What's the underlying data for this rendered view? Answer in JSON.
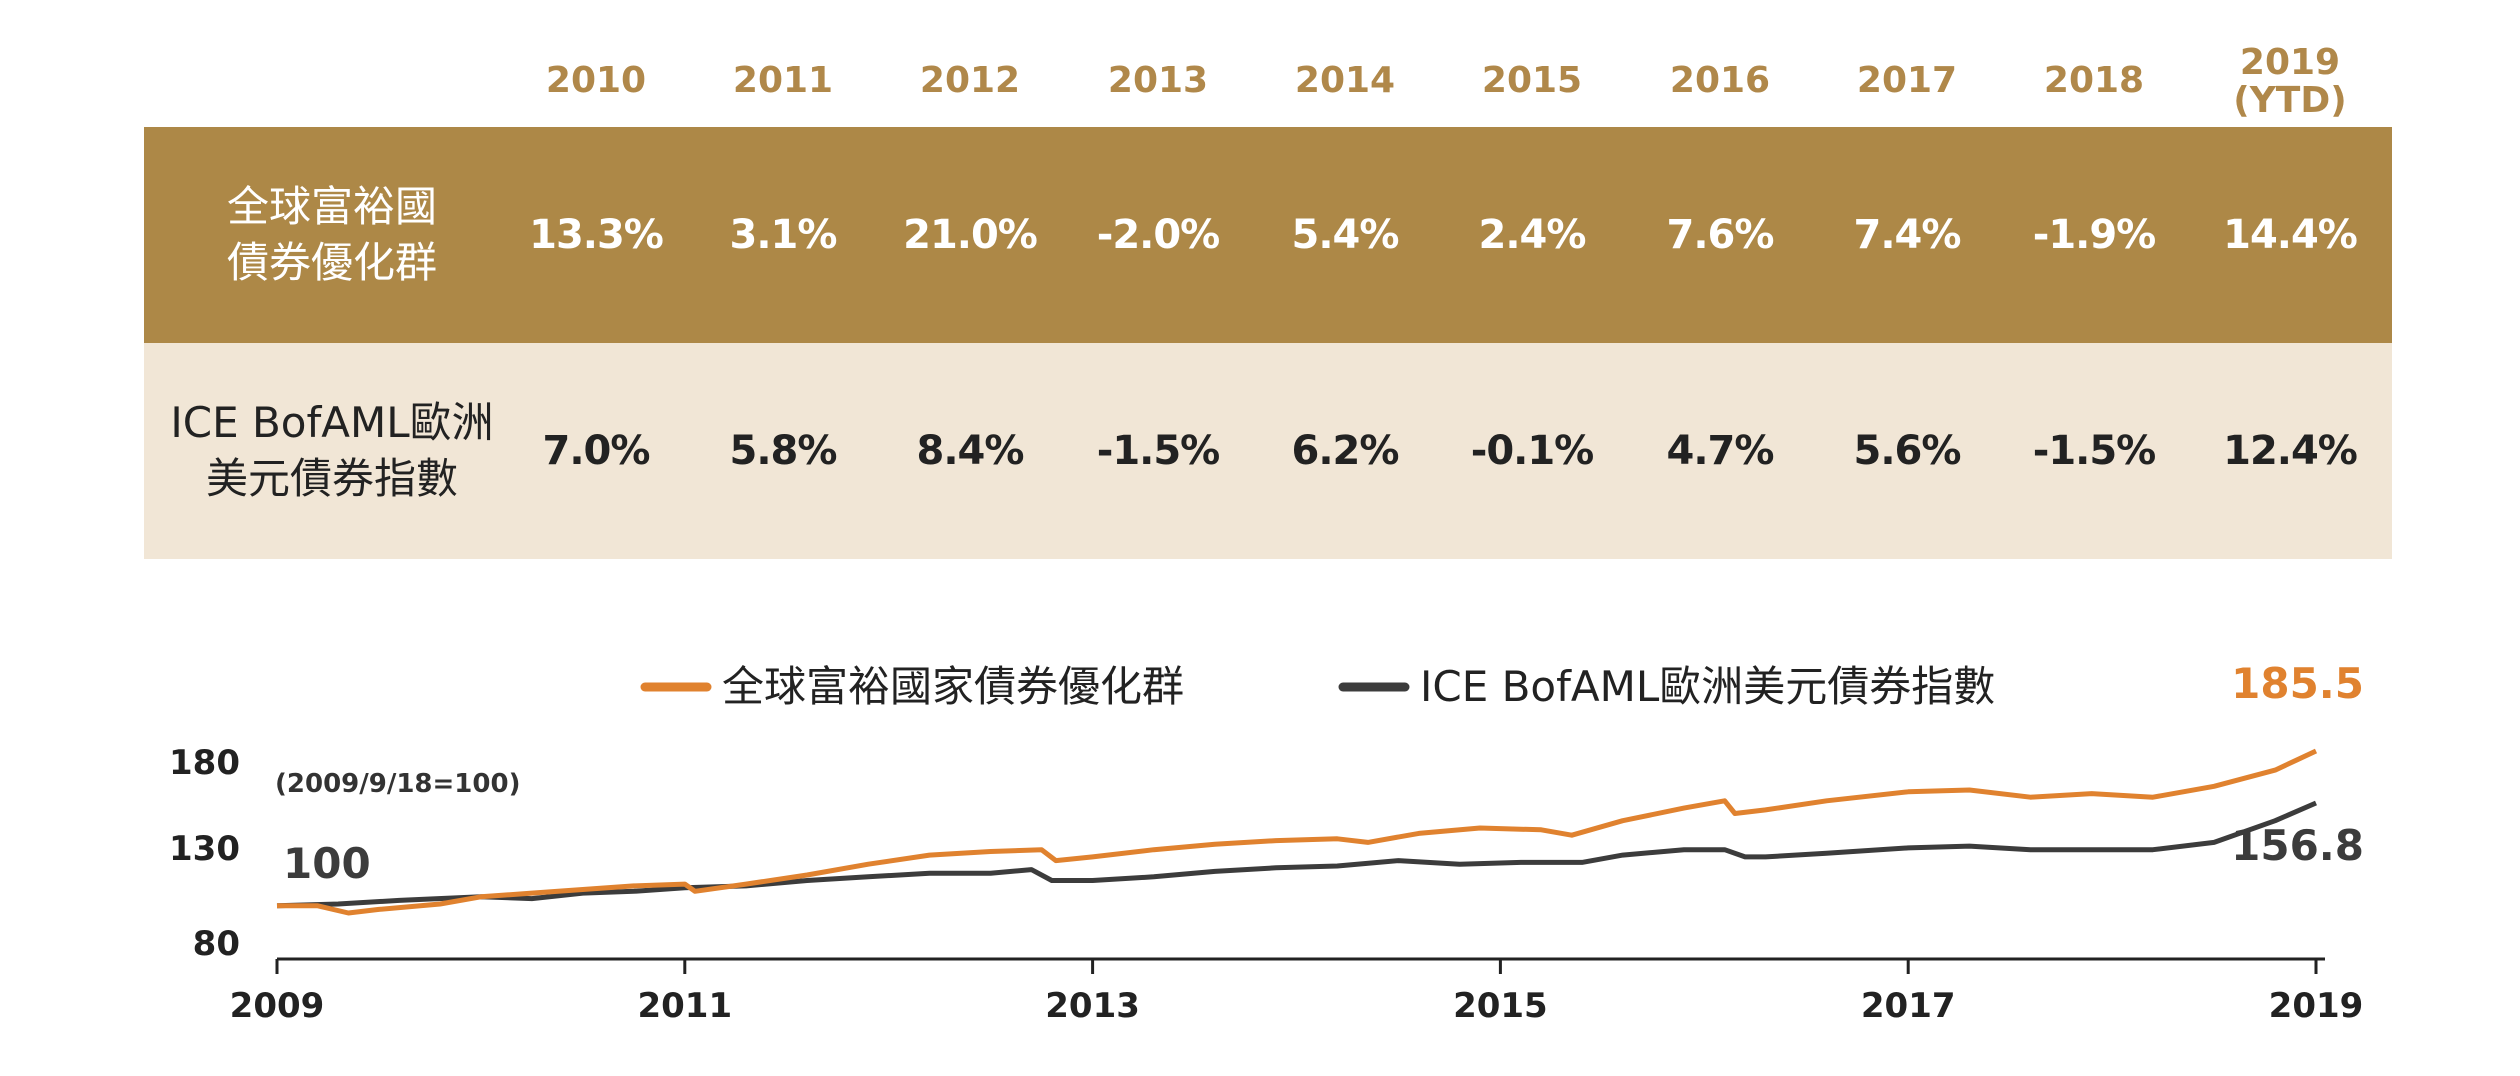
{
  "table": {
    "years": [
      {
        "top": "2010",
        "bottom": ""
      },
      {
        "top": "2011",
        "bottom": ""
      },
      {
        "top": "2012",
        "bottom": ""
      },
      {
        "top": "2013",
        "bottom": ""
      },
      {
        "top": "2014",
        "bottom": ""
      },
      {
        "top": "2015",
        "bottom": ""
      },
      {
        "top": "2016",
        "bottom": ""
      },
      {
        "top": "2017",
        "bottom": ""
      },
      {
        "top": "2018",
        "bottom": ""
      },
      {
        "top": "2019",
        "bottom": "(YTD)"
      }
    ],
    "rows": [
      {
        "label_lines": [
          "全球富裕國",
          "債券優化群"
        ],
        "values": [
          "13.3%",
          "3.1%",
          "21.0%",
          "-2.0%",
          "5.4%",
          "2.4%",
          "7.6%",
          "7.4%",
          "-1.9%",
          "14.4%"
        ]
      },
      {
        "label_lines": [
          "ICE BofAML歐洲",
          "美元債券指數"
        ],
        "values": [
          "7.0%",
          "5.8%",
          "8.4%",
          "-1.5%",
          "6.2%",
          "-0.1%",
          "4.7%",
          "5.6%",
          "-1.5%",
          "12.4%"
        ]
      }
    ]
  },
  "chart_data": {
    "type": "line",
    "note": "(2009/9/18=100)",
    "x_ticks": [
      "2009",
      "2011",
      "2013",
      "2015",
      "2017",
      "2019"
    ],
    "y_ticks": [
      "80",
      "130",
      "180"
    ],
    "xlim": [
      2009.0,
      2019.0
    ],
    "ylim": [
      80,
      180
    ],
    "start_label": "100",
    "legend_position": "top-center",
    "series": [
      {
        "name": "全球富裕國家債券優化群",
        "color": "#e0822f",
        "end_label": "185.5",
        "x": [
          2009.0,
          2009.2,
          2009.35,
          2009.5,
          2009.8,
          2010.0,
          2010.25,
          2010.5,
          2010.75,
          2011.0,
          2011.05,
          2011.3,
          2011.6,
          2011.9,
          2012.2,
          2012.5,
          2012.75,
          2012.82,
          2013.0,
          2013.3,
          2013.6,
          2013.9,
          2014.2,
          2014.35,
          2014.6,
          2014.9,
          2015.2,
          2015.35,
          2015.6,
          2015.9,
          2016.1,
          2016.15,
          2016.3,
          2016.6,
          2017.0,
          2017.3,
          2017.6,
          2017.9,
          2018.2,
          2018.5,
          2018.8,
          2019.0
        ],
        "values": [
          100,
          100,
          96,
          98,
          101,
          105,
          107,
          109,
          111,
          112,
          108,
          112,
          117,
          123,
          128,
          130,
          131,
          125,
          127,
          131,
          134,
          136,
          137,
          135,
          140,
          143,
          142,
          139,
          147,
          154,
          158,
          151,
          153,
          158,
          163,
          164,
          160,
          162,
          160,
          166,
          175,
          185.5
        ]
      },
      {
        "name": "ICE BofAML歐洲美元債券指數",
        "color": "#3c3c3c",
        "end_label": "156.8",
        "x": [
          2009.0,
          2009.3,
          2009.6,
          2010.0,
          2010.25,
          2010.5,
          2010.75,
          2011.0,
          2011.3,
          2011.6,
          2011.9,
          2012.2,
          2012.5,
          2012.7,
          2012.8,
          2013.0,
          2013.3,
          2013.6,
          2013.9,
          2014.2,
          2014.5,
          2014.8,
          2015.1,
          2015.4,
          2015.6,
          2015.9,
          2016.1,
          2016.2,
          2016.3,
          2016.6,
          2017.0,
          2017.3,
          2017.6,
          2017.9,
          2018.2,
          2018.5,
          2018.8,
          2019.0
        ],
        "values": [
          100,
          101,
          103,
          105,
          104,
          107,
          108,
          110,
          111,
          114,
          116,
          118,
          118,
          120,
          114,
          114,
          116,
          119,
          121,
          122,
          125,
          123,
          124,
          124,
          128,
          131,
          131,
          127,
          127,
          129,
          132,
          133,
          131,
          131,
          131,
          135,
          147,
          156.8
        ]
      }
    ]
  }
}
